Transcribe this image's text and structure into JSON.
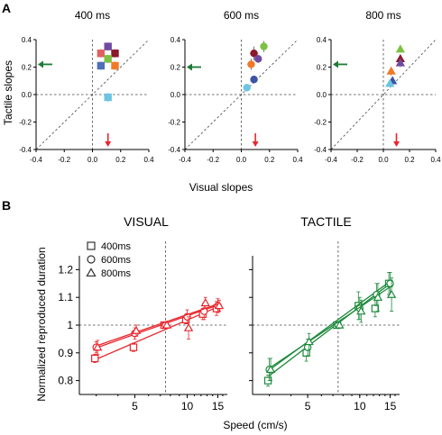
{
  "panel_a": {
    "letter": "A",
    "ylabel": "Tactile slopes",
    "xlabel": "Visual slopes"
  },
  "panel_b": {
    "letter": "B",
    "ylabel": "Normalized reproduced duration",
    "xlabel": "Speed (cm/s)",
    "legend": [
      {
        "marker": "square",
        "label": "400ms"
      },
      {
        "marker": "circle",
        "label": "600ms"
      },
      {
        "marker": "triangle",
        "label": "800ms"
      }
    ]
  },
  "colors": {
    "green_arrow": "#1e7b35",
    "red_arrow": "#e8262c",
    "visual": "#e8262c",
    "tactile": "#1e8a3c"
  },
  "chart_data": [
    {
      "type": "scatter",
      "title": "400 ms",
      "xlim": [
        -0.4,
        0.4
      ],
      "ylim": [
        -0.4,
        0.4
      ],
      "xticks": [
        "-0.4",
        "-0.2",
        "0.0",
        "0.2",
        "0.4"
      ],
      "yticks": [
        "-0.4",
        "-0.2",
        "0.0",
        "0.2",
        "0.4"
      ],
      "marker": "square",
      "points": [
        {
          "x": 0.11,
          "y": 0.35,
          "err": 0.03,
          "color": "#6f4aa0"
        },
        {
          "x": 0.16,
          "y": 0.3,
          "err": 0.03,
          "color": "#8b1a2b"
        },
        {
          "x": 0.06,
          "y": 0.3,
          "err": 0.03,
          "color": "#e06060"
        },
        {
          "x": 0.11,
          "y": 0.26,
          "err": 0.03,
          "color": "#7cc142"
        },
        {
          "x": 0.06,
          "y": 0.21,
          "err": 0.03,
          "color": "#4f6fb8"
        },
        {
          "x": 0.16,
          "y": 0.21,
          "err": 0.03,
          "color": "#f07a2a"
        },
        {
          "x": 0.11,
          "y": -0.02,
          "err": 0.03,
          "color": "#6cc4e0"
        }
      ],
      "arrows": [
        {
          "direction": "left",
          "at": 0.22,
          "color": "#1e7b35"
        },
        {
          "direction": "down",
          "at": 0.11,
          "color": "#e8262c"
        }
      ]
    },
    {
      "type": "scatter",
      "title": "600 ms",
      "xlim": [
        -0.4,
        0.4
      ],
      "ylim": [
        -0.4,
        0.4
      ],
      "xticks": [
        "-0.4",
        "-0.2",
        "0.0",
        "0.2",
        "0.4"
      ],
      "yticks": [
        "-0.4",
        "-0.2",
        "0.0",
        "0.2",
        "0.4"
      ],
      "marker": "circle",
      "points": [
        {
          "x": 0.16,
          "y": 0.35,
          "err": 0.04,
          "color": "#7cc142"
        },
        {
          "x": 0.09,
          "y": 0.3,
          "err": 0.05,
          "color": "#8b1a2b"
        },
        {
          "x": 0.12,
          "y": 0.26,
          "err": 0.03,
          "color": "#6f4aa0"
        },
        {
          "x": 0.07,
          "y": 0.22,
          "err": 0.04,
          "color": "#f07a2a"
        },
        {
          "x": 0.09,
          "y": 0.11,
          "err": 0.02,
          "color": "#3a54a6"
        },
        {
          "x": 0.04,
          "y": 0.05,
          "err": 0.02,
          "color": "#6cc4e0"
        }
      ],
      "arrows": [
        {
          "direction": "left",
          "at": 0.2,
          "color": "#1e7b35"
        },
        {
          "direction": "down",
          "at": 0.1,
          "color": "#e8262c"
        }
      ]
    },
    {
      "type": "scatter",
      "title": "800 ms",
      "xlim": [
        -0.4,
        0.4
      ],
      "ylim": [
        -0.4,
        0.4
      ],
      "xticks": [
        "-0.4",
        "-0.2",
        "0.0",
        "0.2",
        "0.4"
      ],
      "yticks": [
        "-0.4",
        "-0.2",
        "0.0",
        "0.2",
        "0.4"
      ],
      "marker": "triangle",
      "points": [
        {
          "x": 0.13,
          "y": 0.33,
          "err": 0.02,
          "color": "#7cc142"
        },
        {
          "x": 0.13,
          "y": 0.26,
          "err": 0.03,
          "color": "#8b1a2b"
        },
        {
          "x": 0.13,
          "y": 0.23,
          "err": 0.03,
          "color": "#6f4aa0"
        },
        {
          "x": 0.06,
          "y": 0.17,
          "err": 0.03,
          "color": "#f07a2a"
        },
        {
          "x": 0.07,
          "y": 0.1,
          "err": 0.02,
          "color": "#3a54a6"
        },
        {
          "x": 0.05,
          "y": 0.08,
          "err": 0.02,
          "color": "#6cc4e0"
        }
      ],
      "arrows": [
        {
          "direction": "left",
          "at": 0.22,
          "color": "#1e7b35"
        },
        {
          "direction": "down",
          "at": 0.1,
          "color": "#e8262c"
        }
      ]
    },
    {
      "type": "line",
      "title": "VISUAL",
      "xlabel": "Speed (cm/s)",
      "ylabel": "Normalized reproduced duration",
      "xscale": "log",
      "xlim": [
        2.4,
        17
      ],
      "ylim": [
        0.75,
        1.25
      ],
      "xticks": [
        "5",
        "10",
        "15"
      ],
      "yticks": [
        "0.8",
        "0.9",
        "1",
        "1.1",
        "1.2"
      ],
      "reference_x": 7.5,
      "reference_y": 1,
      "x": [
        3,
        5,
        7.5,
        10,
        12.5,
        15
      ],
      "series": [
        {
          "name": "400ms",
          "marker": "square",
          "values": [
            0.88,
            0.92,
            1.0,
            1.02,
            1.04,
            1.06
          ],
          "err": [
            0.015,
            0.015,
            0.01,
            0.015,
            0.02,
            0.025
          ],
          "fit": [
            0.877,
            1.066
          ]
        },
        {
          "name": "600ms",
          "marker": "circle",
          "values": [
            0.92,
            0.97,
            1.0,
            1.03,
            1.05,
            1.07
          ],
          "err": [
            0.02,
            0.02,
            0.01,
            0.025,
            0.03,
            0.025
          ],
          "fit": [
            0.918,
            1.072
          ]
        },
        {
          "name": "800ms",
          "marker": "triangle",
          "values": [
            0.92,
            0.98,
            1.0,
            0.99,
            1.08,
            1.07
          ],
          "err": [
            0.025,
            0.02,
            0.01,
            0.04,
            0.02,
            0.02
          ],
          "fit": [
            0.925,
            1.076
          ]
        }
      ],
      "color": "#e8262c"
    },
    {
      "type": "line",
      "title": "TACTILE",
      "xlabel": "Speed (cm/s)",
      "xscale": "log",
      "xlim": [
        2.4,
        17
      ],
      "ylim": [
        0.75,
        1.25
      ],
      "xticks": [
        "5",
        "10",
        "15"
      ],
      "yticks": [
        "0.8",
        "0.9",
        "1",
        "1.1",
        "1.2"
      ],
      "reference_x": 7.5,
      "reference_y": 1,
      "x": [
        3,
        5,
        7.5,
        10,
        12.5,
        15
      ],
      "series": [
        {
          "name": "400ms",
          "marker": "square",
          "values": [
            0.8,
            0.9,
            1.0,
            1.07,
            1.06,
            1.15
          ],
          "err": [
            0.02,
            0.03,
            0.01,
            0.05,
            0.03,
            0.04
          ],
          "fit": [
            0.818,
            1.15
          ]
        },
        {
          "name": "600ms",
          "marker": "circle",
          "values": [
            0.84,
            0.92,
            1.0,
            1.06,
            1.11,
            1.15
          ],
          "err": [
            0.04,
            0.03,
            0.01,
            0.04,
            0.04,
            0.04
          ],
          "fit": [
            0.838,
            1.158
          ]
        },
        {
          "name": "800ms",
          "marker": "triangle",
          "values": [
            0.84,
            0.94,
            1.0,
            1.05,
            1.1,
            1.11
          ],
          "err": [
            0.04,
            0.03,
            0.01,
            0.04,
            0.05,
            0.06
          ],
          "fit": [
            0.845,
            1.138
          ]
        }
      ],
      "color": "#1e8a3c"
    }
  ]
}
